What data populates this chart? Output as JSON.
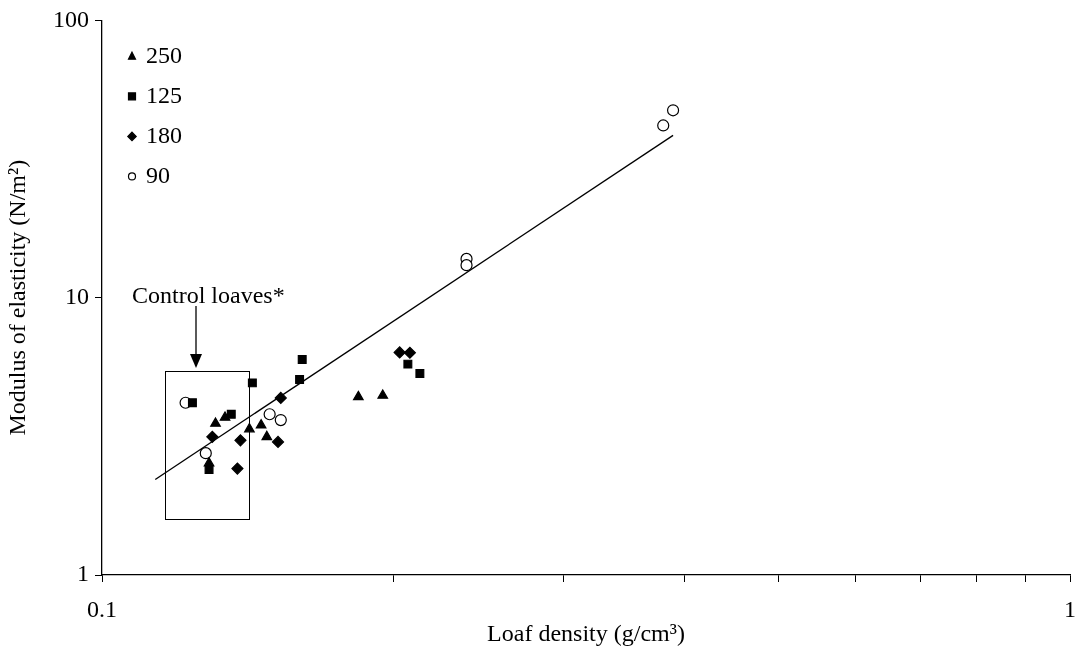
{
  "chart_data": {
    "type": "scatter",
    "xlabel": "Loaf density (g/cm³)",
    "ylabel": "Modulus of elasticity (N/m²)",
    "log": "xy",
    "xlim": [
      0.1,
      1
    ],
    "ylim": [
      1,
      100
    ],
    "xticks": [
      0.1,
      {
        "value": 0.2,
        "label": null
      },
      {
        "value": 0.3,
        "label": null
      },
      {
        "value": 0.4,
        "label": null
      },
      {
        "value": 0.5,
        "label": null
      },
      {
        "value": 0.6,
        "label": null
      },
      {
        "value": 0.7,
        "label": null
      },
      {
        "value": 0.8,
        "label": null
      },
      {
        "value": 0.9,
        "label": null
      },
      1
    ],
    "yticks": [
      1,
      10,
      100
    ],
    "grid": false,
    "legend": "top left",
    "annotations": [
      "Control loaves*"
    ],
    "series": [
      {
        "name": "250",
        "color": "#000000",
        "marker": "triangle",
        "x": [
          0.131,
          0.134,
          0.142,
          0.146,
          0.148,
          0.129,
          0.184,
          0.195
        ],
        "values": [
          3.52,
          3.7,
          3.36,
          3.47,
          3.15,
          2.53,
          4.39,
          4.44
        ]
      },
      {
        "name": "125",
        "color": "#000000",
        "marker": "square",
        "x": [
          0.124,
          0.136,
          0.143,
          0.161,
          0.16,
          0.129,
          0.207,
          0.213
        ],
        "values": [
          4.18,
          3.8,
          4.93,
          5.99,
          5.07,
          2.4,
          5.76,
          5.33
        ]
      },
      {
        "name": "180",
        "color": "#000000",
        "marker": "diamond",
        "x": [
          0.13,
          0.139,
          0.138,
          0.153,
          0.152,
          0.203,
          0.208
        ],
        "values": [
          3.15,
          3.06,
          2.42,
          4.35,
          3.02,
          6.35,
          6.33
        ]
      },
      {
        "name": "90",
        "color": "#000000",
        "marker": "circle",
        "x": [
          0.122,
          0.128,
          0.149,
          0.153,
          0.238,
          0.238,
          0.38,
          0.389
        ],
        "values": [
          4.18,
          2.75,
          3.8,
          3.62,
          13.8,
          13.1,
          41.8,
          47.4
        ]
      },
      {
        "type": "line",
        "color": "#000000",
        "marker": "none",
        "line_style": "solid",
        "x": [
          0.1135,
          0.389
        ],
        "values": [
          2.21,
          38.5
        ]
      }
    ]
  }
}
